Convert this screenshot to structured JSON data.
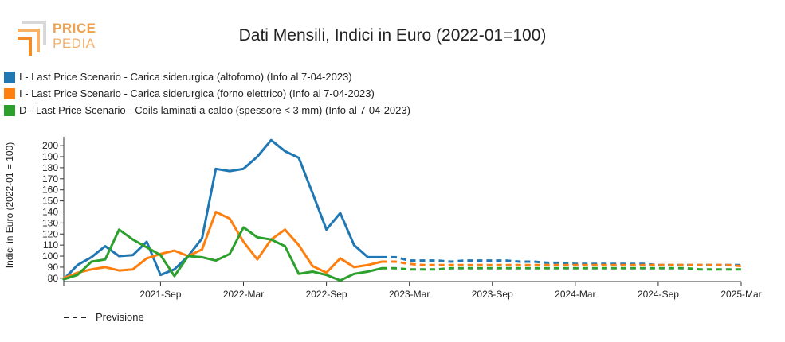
{
  "logo": {
    "line1": "PRICE",
    "line2": "PEDIA"
  },
  "chart_data": {
    "type": "line",
    "title": "Dati Mensili, Indici in Euro (2022-01=100)",
    "ylabel": "Indici in Euro (2022-01 = 100)",
    "xlabel": "",
    "ylim": [
      77,
      208
    ],
    "yticks": [
      80,
      90,
      100,
      110,
      120,
      130,
      140,
      150,
      160,
      170,
      180,
      190,
      200
    ],
    "x_tick_labels": [
      "2021-Sep",
      "2022-Mar",
      "2022-Sep",
      "2023-Mar",
      "2023-Sep",
      "2024-Mar",
      "2024-Sep",
      "2025-Mar"
    ],
    "x_tick_months": [
      8,
      14,
      20,
      26,
      32,
      38,
      44,
      50
    ],
    "x_range_months": [
      1,
      50
    ],
    "forecast_label": "Previsione",
    "grid": false,
    "series": [
      {
        "name": "I - Last Price Scenario - Carica siderurgica (altoforno) (Info al 7-04-2023)",
        "color": "#1f77b4",
        "actual": [
          [
            1,
            79
          ],
          [
            2,
            92
          ],
          [
            3,
            99
          ],
          [
            4,
            109
          ],
          [
            5,
            100
          ],
          [
            6,
            101
          ],
          [
            7,
            113
          ],
          [
            8,
            83
          ],
          [
            9,
            88
          ],
          [
            10,
            100
          ],
          [
            11,
            116
          ],
          [
            12,
            179
          ],
          [
            13,
            177
          ],
          [
            14,
            179
          ],
          [
            15,
            190
          ],
          [
            16,
            205
          ],
          [
            17,
            195
          ],
          [
            18,
            189
          ],
          [
            19,
            157
          ],
          [
            20,
            124
          ],
          [
            21,
            139
          ],
          [
            22,
            110
          ],
          [
            23,
            99
          ],
          [
            24,
            99
          ]
        ],
        "forecast": [
          [
            24,
            99
          ],
          [
            25,
            99
          ],
          [
            26,
            96
          ],
          [
            27,
            96
          ],
          [
            28,
            96
          ],
          [
            29,
            95
          ],
          [
            30,
            96
          ],
          [
            31,
            96
          ],
          [
            32,
            96
          ],
          [
            33,
            96
          ],
          [
            34,
            95
          ],
          [
            35,
            95
          ],
          [
            36,
            94
          ],
          [
            37,
            94
          ],
          [
            38,
            93
          ],
          [
            39,
            93
          ],
          [
            40,
            93
          ],
          [
            41,
            93
          ],
          [
            42,
            93
          ],
          [
            43,
            93
          ],
          [
            44,
            92
          ],
          [
            45,
            92
          ],
          [
            46,
            92
          ],
          [
            47,
            92
          ],
          [
            48,
            92
          ],
          [
            49,
            92
          ],
          [
            50,
            92
          ]
        ]
      },
      {
        "name": "I - Last Price Scenario - Carica siderurgica (forno elettrico) (Info al 7-04-2023)",
        "color": "#ff7f0e",
        "actual": [
          [
            1,
            80
          ],
          [
            2,
            85
          ],
          [
            3,
            88
          ],
          [
            4,
            90
          ],
          [
            5,
            87
          ],
          [
            6,
            88
          ],
          [
            7,
            98
          ],
          [
            8,
            102
          ],
          [
            9,
            105
          ],
          [
            10,
            100
          ],
          [
            11,
            106
          ],
          [
            12,
            140
          ],
          [
            13,
            134
          ],
          [
            14,
            113
          ],
          [
            15,
            97
          ],
          [
            16,
            115
          ],
          [
            17,
            124
          ],
          [
            18,
            110
          ],
          [
            19,
            91
          ],
          [
            20,
            85
          ],
          [
            21,
            98
          ],
          [
            22,
            90
          ],
          [
            23,
            92
          ],
          [
            24,
            95
          ]
        ],
        "forecast": [
          [
            24,
            95
          ],
          [
            25,
            95
          ],
          [
            26,
            93
          ],
          [
            27,
            92
          ],
          [
            28,
            92
          ],
          [
            29,
            92
          ],
          [
            30,
            92
          ],
          [
            31,
            92
          ],
          [
            32,
            92
          ],
          [
            33,
            92
          ],
          [
            34,
            92
          ],
          [
            35,
            92
          ],
          [
            36,
            92
          ],
          [
            37,
            92
          ],
          [
            38,
            92
          ],
          [
            39,
            92
          ],
          [
            40,
            92
          ],
          [
            41,
            92
          ],
          [
            42,
            92
          ],
          [
            43,
            92
          ],
          [
            44,
            92
          ],
          [
            45,
            92
          ],
          [
            46,
            92
          ],
          [
            47,
            92
          ],
          [
            48,
            92
          ],
          [
            49,
            92
          ],
          [
            50,
            91
          ]
        ]
      },
      {
        "name": "D - Last Price Scenario - Coils laminati a caldo (spessore < 3 mm) (Info al 7-04-2023)",
        "color": "#2ca02c",
        "actual": [
          [
            1,
            79
          ],
          [
            2,
            83
          ],
          [
            3,
            95
          ],
          [
            4,
            97
          ],
          [
            5,
            124
          ],
          [
            6,
            115
          ],
          [
            7,
            108
          ],
          [
            8,
            101
          ],
          [
            9,
            82
          ],
          [
            10,
            100
          ],
          [
            11,
            99
          ],
          [
            12,
            96
          ],
          [
            13,
            102
          ],
          [
            14,
            126
          ],
          [
            15,
            117
          ],
          [
            16,
            115
          ],
          [
            17,
            109
          ],
          [
            18,
            84
          ],
          [
            19,
            86
          ],
          [
            20,
            83
          ],
          [
            21,
            78
          ],
          [
            22,
            84
          ],
          [
            23,
            86
          ],
          [
            24,
            89
          ]
        ],
        "forecast": [
          [
            24,
            89
          ],
          [
            25,
            89
          ],
          [
            26,
            88
          ],
          [
            27,
            88
          ],
          [
            28,
            88
          ],
          [
            29,
            89
          ],
          [
            30,
            89
          ],
          [
            31,
            89
          ],
          [
            32,
            89
          ],
          [
            33,
            89
          ],
          [
            34,
            89
          ],
          [
            35,
            89
          ],
          [
            36,
            89
          ],
          [
            37,
            89
          ],
          [
            38,
            89
          ],
          [
            39,
            89
          ],
          [
            40,
            89
          ],
          [
            41,
            89
          ],
          [
            42,
            89
          ],
          [
            43,
            89
          ],
          [
            44,
            89
          ],
          [
            45,
            89
          ],
          [
            46,
            89
          ],
          [
            47,
            88
          ],
          [
            48,
            88
          ],
          [
            49,
            88
          ],
          [
            50,
            88
          ]
        ]
      }
    ]
  }
}
